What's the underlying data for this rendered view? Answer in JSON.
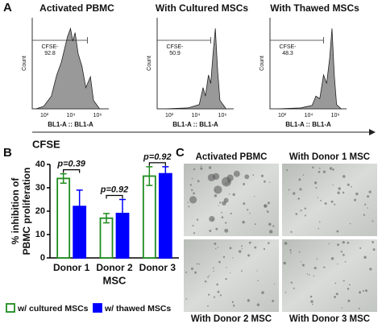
{
  "panel_labels": [
    "A",
    "B",
    "C"
  ],
  "flow": {
    "y_label": "Count",
    "x_ticks": [
      "10²",
      "10⁴",
      "10⁶"
    ],
    "x_param": "BL1-A :: BL1-A",
    "axis_label": "CFSE",
    "plots": [
      {
        "title": "Activated PBMC",
        "gate_label": "CFSE-",
        "gate_value": "92.8"
      },
      {
        "title": "With Cultured MSCs",
        "gate_label": "CFSE-",
        "gate_value": "50.9"
      },
      {
        "title": "With Thawed MSCs",
        "gate_label": "CFSE-",
        "gate_value": "48.3"
      }
    ]
  },
  "chart_data": {
    "type": "bar",
    "y_label": [
      "% inhibition of",
      "PBMC proliferation"
    ],
    "x_label": "MSC",
    "categories": [
      "Donor 1",
      "Donor 2",
      "Donor 3"
    ],
    "series": [
      {
        "name": "w/ cultured MSCs",
        "color": "#1e8c1e",
        "values": [
          34,
          17,
          35
        ],
        "errors": [
          2,
          2,
          4
        ]
      },
      {
        "name": "w/ thawed MSCs",
        "color": "#0000ff",
        "values": [
          22,
          19,
          36
        ],
        "errors": [
          7,
          6,
          3
        ]
      }
    ],
    "annotations": [
      "p=0.39",
      "p=0.92",
      "p=0.92"
    ],
    "ylim": [
      0,
      40
    ],
    "yticks": [
      0,
      10,
      20,
      30,
      40
    ]
  },
  "micrographs": {
    "labels": [
      "Activated PBMC",
      "With Donor 1 MSC",
      "With Donor 2 MSC",
      "With Donor 3 MSC"
    ]
  }
}
